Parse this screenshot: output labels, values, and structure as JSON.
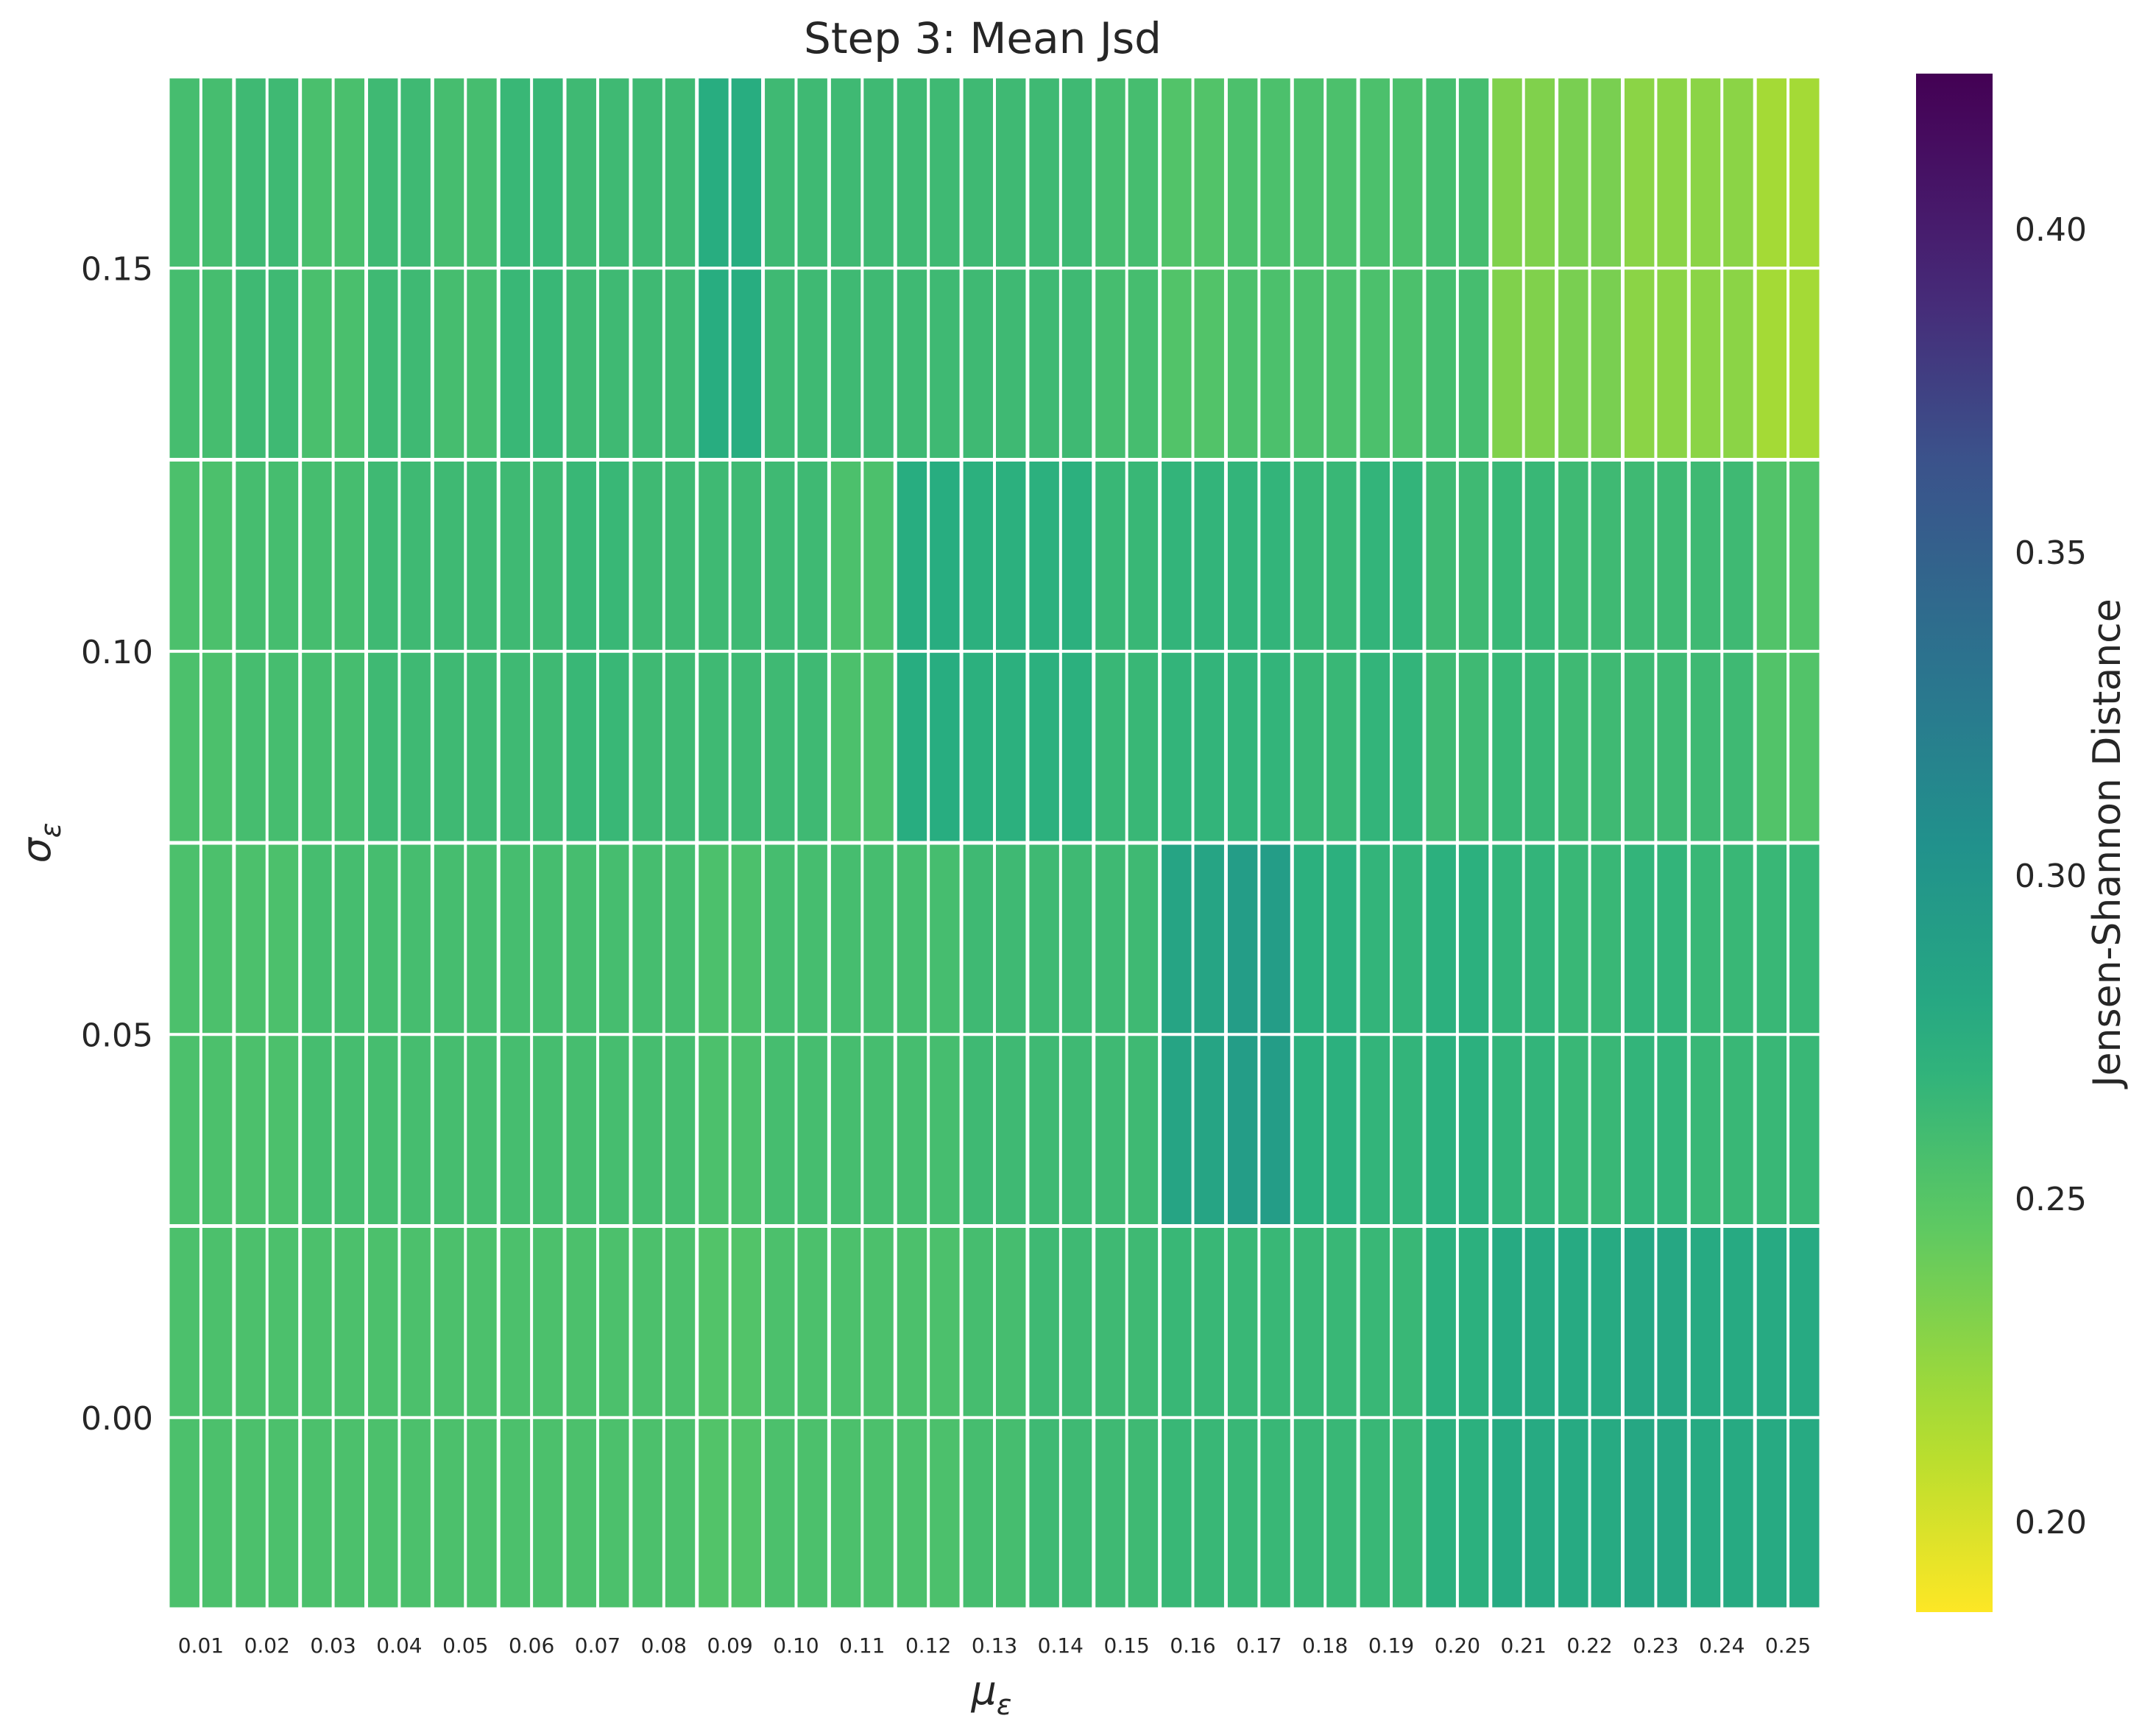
{
  "chart_data": {
    "type": "heatmap",
    "title": "Step 3: Mean Jsd",
    "xlabel": "μ",
    "xlabel_sub": "ε",
    "ylabel": "σ",
    "ylabel_sub": "ε",
    "x_tick_labels": [
      "0.01",
      "0.02",
      "0.03",
      "0.04",
      "0.05",
      "0.06",
      "0.07",
      "0.08",
      "0.09",
      "0.10",
      "0.11",
      "0.12",
      "0.13",
      "0.14",
      "0.15",
      "0.16",
      "0.17",
      "0.18",
      "0.19",
      "0.20",
      "0.21",
      "0.22",
      "0.23",
      "0.24",
      "0.25"
    ],
    "y_ticks": [
      0.15,
      0.1,
      0.05,
      0.0
    ],
    "y_tick_labels": [
      "0.15",
      "0.10",
      "0.05",
      "0.00"
    ],
    "ylim": [
      -0.025,
      0.175
    ],
    "rows_sigma": [
      0.15,
      0.1,
      0.05,
      0.0
    ],
    "values": [
      [
        0.258,
        0.262,
        0.256,
        0.262,
        0.258,
        0.265,
        0.262,
        0.262,
        0.275,
        0.262,
        0.262,
        0.262,
        0.262,
        0.262,
        0.258,
        0.252,
        0.255,
        0.255,
        0.255,
        0.258,
        0.232,
        0.235,
        0.228,
        0.228,
        0.218
      ],
      [
        0.255,
        0.258,
        0.258,
        0.262,
        0.262,
        0.262,
        0.265,
        0.262,
        0.262,
        0.262,
        0.255,
        0.275,
        0.272,
        0.272,
        0.265,
        0.268,
        0.268,
        0.265,
        0.268,
        0.262,
        0.265,
        0.262,
        0.262,
        0.262,
        0.252
      ],
      [
        0.255,
        0.255,
        0.258,
        0.258,
        0.258,
        0.258,
        0.258,
        0.258,
        0.255,
        0.258,
        0.258,
        0.258,
        0.262,
        0.262,
        0.262,
        0.285,
        0.292,
        0.272,
        0.268,
        0.272,
        0.268,
        0.265,
        0.268,
        0.265,
        0.265
      ],
      [
        0.255,
        0.255,
        0.255,
        0.255,
        0.255,
        0.255,
        0.255,
        0.255,
        0.252,
        0.255,
        0.255,
        0.255,
        0.258,
        0.262,
        0.262,
        0.265,
        0.265,
        0.265,
        0.265,
        0.272,
        0.278,
        0.278,
        0.282,
        0.278,
        0.278
      ]
    ],
    "colorbar": {
      "label": "Jensen-Shannon Distance",
      "range": [
        0.186,
        0.424
      ],
      "ticks": [
        0.2,
        0.25,
        0.3,
        0.35,
        0.4
      ],
      "tick_labels": [
        "0.20",
        "0.25",
        "0.30",
        "0.35",
        "0.40"
      ],
      "colormap": "viridis_r"
    },
    "grid": true
  }
}
